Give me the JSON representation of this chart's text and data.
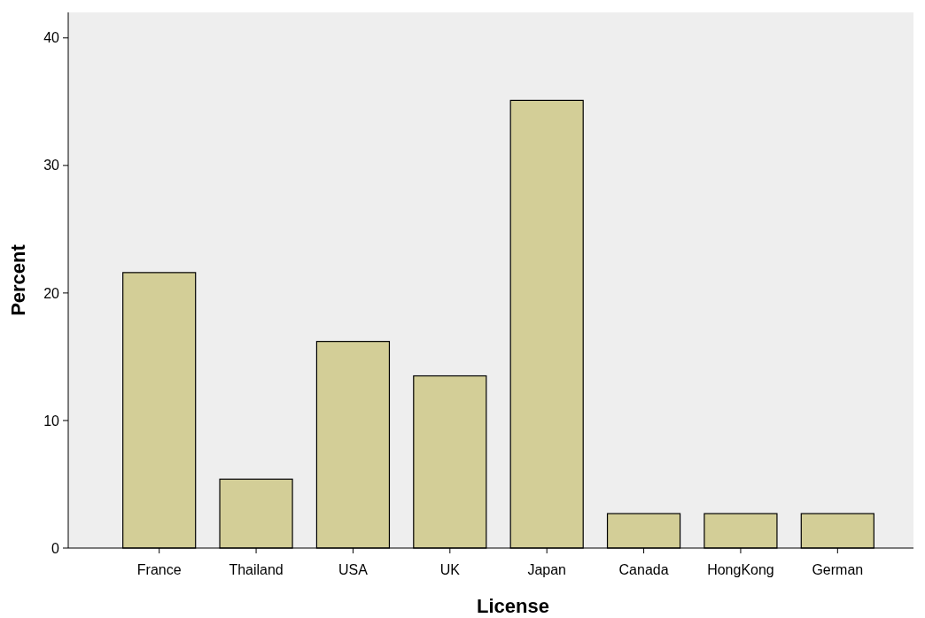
{
  "chart_data": {
    "type": "bar",
    "xlabel": "License",
    "ylabel": "Percent",
    "categories": [
      "France",
      "Thailand",
      "USA",
      "UK",
      "Japan",
      "Canada",
      "HongKong",
      "German"
    ],
    "values": [
      21.6,
      5.4,
      16.2,
      13.5,
      35.1,
      2.7,
      2.7,
      2.7
    ],
    "color": "#d3ce97",
    "ylim": [
      0,
      42
    ],
    "yticks": [
      0,
      10,
      20,
      30,
      40
    ],
    "grid": false
  }
}
